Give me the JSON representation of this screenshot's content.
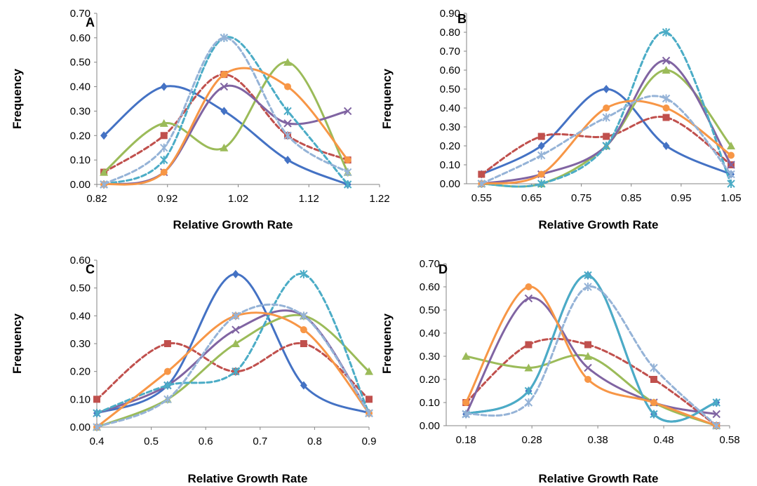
{
  "chart_data": [
    {
      "panel": "A",
      "type": "line",
      "xlabel": "Relative Growth Rate",
      "ylabel": "Frequency",
      "xlim": [
        0.82,
        1.22
      ],
      "ylim": [
        0,
        0.7
      ],
      "xticks": [
        "0.82",
        "0.92",
        "1.02",
        "1.12",
        "1.22"
      ],
      "yticks": [
        "0.00",
        "0.10",
        "0.20",
        "0.30",
        "0.40",
        "0.50",
        "0.60",
        "0.70"
      ],
      "grid": false,
      "series": [
        {
          "color": "#4472c4",
          "marker": "diamond",
          "dash": false,
          "points": [
            [
              0.83,
              0.2
            ],
            [
              0.915,
              0.4
            ],
            [
              1.0,
              0.3
            ],
            [
              1.09,
              0.1
            ],
            [
              1.175,
              0.0
            ]
          ]
        },
        {
          "color": "#c0504d",
          "marker": "square",
          "dash": true,
          "points": [
            [
              0.83,
              0.05
            ],
            [
              0.915,
              0.2
            ],
            [
              1.0,
              0.45
            ],
            [
              1.09,
              0.2
            ],
            [
              1.175,
              0.1
            ]
          ]
        },
        {
          "color": "#9bbb59",
          "marker": "triangle",
          "dash": false,
          "points": [
            [
              0.83,
              0.05
            ],
            [
              0.915,
              0.25
            ],
            [
              1.0,
              0.15
            ],
            [
              1.09,
              0.5
            ],
            [
              1.175,
              0.05
            ]
          ]
        },
        {
          "color": "#8064a2",
          "marker": "x",
          "dash": false,
          "points": [
            [
              0.83,
              0.0
            ],
            [
              0.915,
              0.05
            ],
            [
              1.0,
              0.4
            ],
            [
              1.09,
              0.25
            ],
            [
              1.175,
              0.3
            ]
          ]
        },
        {
          "color": "#4bacc6",
          "marker": "star",
          "dash": true,
          "points": [
            [
              0.83,
              0.0
            ],
            [
              0.915,
              0.1
            ],
            [
              1.0,
              0.6
            ],
            [
              1.09,
              0.3
            ],
            [
              1.175,
              0.0
            ]
          ]
        },
        {
          "color": "#f79646",
          "marker": "circle",
          "dash": false,
          "points": [
            [
              0.83,
              0.0
            ],
            [
              0.915,
              0.05
            ],
            [
              1.0,
              0.45
            ],
            [
              1.09,
              0.4
            ],
            [
              1.175,
              0.1
            ]
          ]
        },
        {
          "color": "#95b3d7",
          "marker": "star",
          "dash": true,
          "points": [
            [
              0.83,
              0.0
            ],
            [
              0.915,
              0.15
            ],
            [
              1.0,
              0.6
            ],
            [
              1.09,
              0.2
            ],
            [
              1.175,
              0.05
            ]
          ]
        }
      ]
    },
    {
      "panel": "B",
      "type": "line",
      "xlabel": "Relative Growth Rate",
      "ylabel": "Frequency",
      "xlim": [
        0.52,
        1.05
      ],
      "ylim": [
        0,
        0.9
      ],
      "xticks": [
        "0.55",
        "0.65",
        "0.75",
        "0.85",
        "0.95",
        "1.05"
      ],
      "yticks": [
        "0.00",
        "0.10",
        "0.20",
        "0.30",
        "0.40",
        "0.50",
        "0.60",
        "0.70",
        "0.80",
        "0.90"
      ],
      "grid": false,
      "series": [
        {
          "color": "#4472c4",
          "marker": "diamond",
          "dash": false,
          "points": [
            [
              0.55,
              0.05
            ],
            [
              0.67,
              0.2
            ],
            [
              0.8,
              0.5
            ],
            [
              0.92,
              0.2
            ],
            [
              1.05,
              0.05
            ]
          ]
        },
        {
          "color": "#c0504d",
          "marker": "square",
          "dash": true,
          "points": [
            [
              0.55,
              0.05
            ],
            [
              0.67,
              0.25
            ],
            [
              0.8,
              0.25
            ],
            [
              0.92,
              0.35
            ],
            [
              1.05,
              0.1
            ]
          ]
        },
        {
          "color": "#9bbb59",
          "marker": "triangle",
          "dash": false,
          "points": [
            [
              0.55,
              0.0
            ],
            [
              0.67,
              0.0
            ],
            [
              0.8,
              0.2
            ],
            [
              0.92,
              0.6
            ],
            [
              1.05,
              0.2
            ]
          ]
        },
        {
          "color": "#8064a2",
          "marker": "x",
          "dash": false,
          "points": [
            [
              0.55,
              0.0
            ],
            [
              0.67,
              0.05
            ],
            [
              0.8,
              0.2
            ],
            [
              0.92,
              0.65
            ],
            [
              1.05,
              0.1
            ]
          ]
        },
        {
          "color": "#4bacc6",
          "marker": "star",
          "dash": true,
          "points": [
            [
              0.55,
              0.0
            ],
            [
              0.67,
              0.0
            ],
            [
              0.8,
              0.2
            ],
            [
              0.92,
              0.8
            ],
            [
              1.05,
              0.0
            ]
          ]
        },
        {
          "color": "#f79646",
          "marker": "circle",
          "dash": false,
          "points": [
            [
              0.55,
              0.0
            ],
            [
              0.67,
              0.05
            ],
            [
              0.8,
              0.4
            ],
            [
              0.92,
              0.4
            ],
            [
              1.05,
              0.15
            ]
          ]
        },
        {
          "color": "#95b3d7",
          "marker": "star",
          "dash": true,
          "points": [
            [
              0.55,
              0.0
            ],
            [
              0.67,
              0.15
            ],
            [
              0.8,
              0.35
            ],
            [
              0.92,
              0.45
            ],
            [
              1.05,
              0.05
            ]
          ]
        }
      ]
    },
    {
      "panel": "C",
      "type": "line",
      "xlabel": "Relative Growth Rate",
      "ylabel": "Frequency",
      "xlim": [
        0.4,
        0.9
      ],
      "ylim": [
        0,
        0.6
      ],
      "xticks": [
        "0.4",
        "0.5",
        "0.6",
        "0.7",
        "0.8",
        "0.9"
      ],
      "yticks": [
        "0.00",
        "0.10",
        "0.20",
        "0.30",
        "0.40",
        "0.50",
        "0.60"
      ],
      "grid": false,
      "series": [
        {
          "color": "#4472c4",
          "marker": "diamond",
          "dash": false,
          "points": [
            [
              0.4,
              0.05
            ],
            [
              0.53,
              0.15
            ],
            [
              0.655,
              0.55
            ],
            [
              0.78,
              0.15
            ],
            [
              0.9,
              0.05
            ]
          ]
        },
        {
          "color": "#c0504d",
          "marker": "square",
          "dash": true,
          "points": [
            [
              0.4,
              0.1
            ],
            [
              0.53,
              0.3
            ],
            [
              0.655,
              0.2
            ],
            [
              0.78,
              0.3
            ],
            [
              0.9,
              0.1
            ]
          ]
        },
        {
          "color": "#9bbb59",
          "marker": "triangle",
          "dash": false,
          "points": [
            [
              0.4,
              0.0
            ],
            [
              0.53,
              0.1
            ],
            [
              0.655,
              0.3
            ],
            [
              0.78,
              0.4
            ],
            [
              0.9,
              0.2
            ]
          ]
        },
        {
          "color": "#8064a2",
          "marker": "x",
          "dash": false,
          "points": [
            [
              0.4,
              0.05
            ],
            [
              0.53,
              0.15
            ],
            [
              0.655,
              0.35
            ],
            [
              0.78,
              0.4
            ],
            [
              0.9,
              0.05
            ]
          ]
        },
        {
          "color": "#4bacc6",
          "marker": "star",
          "dash": true,
          "points": [
            [
              0.4,
              0.05
            ],
            [
              0.53,
              0.15
            ],
            [
              0.655,
              0.2
            ],
            [
              0.78,
              0.55
            ],
            [
              0.9,
              0.05
            ]
          ]
        },
        {
          "color": "#f79646",
          "marker": "circle",
          "dash": false,
          "points": [
            [
              0.4,
              0.0
            ],
            [
              0.53,
              0.2
            ],
            [
              0.655,
              0.4
            ],
            [
              0.78,
              0.35
            ],
            [
              0.9,
              0.05
            ]
          ]
        },
        {
          "color": "#95b3d7",
          "marker": "star",
          "dash": true,
          "points": [
            [
              0.4,
              0.0
            ],
            [
              0.53,
              0.1
            ],
            [
              0.655,
              0.4
            ],
            [
              0.78,
              0.4
            ],
            [
              0.9,
              0.05
            ]
          ]
        }
      ]
    },
    {
      "panel": "D",
      "type": "line",
      "xlabel": "Relative Growth Rate",
      "ylabel": "Frequency",
      "xlim": [
        0.15,
        0.58
      ],
      "ylim": [
        0,
        0.7
      ],
      "xticks": [
        "0.18",
        "0.28",
        "0.38",
        "0.48",
        "0.58"
      ],
      "yticks": [
        "0.00",
        "0.10",
        "0.20",
        "0.30",
        "0.40",
        "0.50",
        "0.60",
        "0.70"
      ],
      "grid": false,
      "series": [
        {
          "color": "#4472c4",
          "marker": "diamond",
          "dash": false,
          "points": [
            [
              0.18,
              0.05
            ],
            [
              0.275,
              0.15
            ],
            [
              0.365,
              0.65
            ],
            [
              0.465,
              0.05
            ],
            [
              0.56,
              0.1
            ]
          ]
        },
        {
          "color": "#c0504d",
          "marker": "square",
          "dash": true,
          "points": [
            [
              0.18,
              0.1
            ],
            [
              0.275,
              0.35
            ],
            [
              0.365,
              0.35
            ],
            [
              0.465,
              0.2
            ],
            [
              0.56,
              0.0
            ]
          ]
        },
        {
          "color": "#9bbb59",
          "marker": "triangle",
          "dash": false,
          "points": [
            [
              0.18,
              0.3
            ],
            [
              0.275,
              0.25
            ],
            [
              0.365,
              0.3
            ],
            [
              0.465,
              0.1
            ],
            [
              0.56,
              0.0
            ]
          ]
        },
        {
          "color": "#8064a2",
          "marker": "x",
          "dash": false,
          "points": [
            [
              0.18,
              0.05
            ],
            [
              0.275,
              0.55
            ],
            [
              0.365,
              0.25
            ],
            [
              0.465,
              0.1
            ],
            [
              0.56,
              0.05
            ]
          ]
        },
        {
          "color": "#4bacc6",
          "marker": "star",
          "dash": false,
          "points": [
            [
              0.18,
              0.05
            ],
            [
              0.275,
              0.15
            ],
            [
              0.365,
              0.65
            ],
            [
              0.465,
              0.05
            ],
            [
              0.56,
              0.1
            ]
          ]
        },
        {
          "color": "#f79646",
          "marker": "circle",
          "dash": false,
          "points": [
            [
              0.18,
              0.1
            ],
            [
              0.275,
              0.6
            ],
            [
              0.365,
              0.2
            ],
            [
              0.465,
              0.1
            ],
            [
              0.56,
              0.0
            ]
          ]
        },
        {
          "color": "#95b3d7",
          "marker": "star",
          "dash": true,
          "points": [
            [
              0.18,
              0.05
            ],
            [
              0.275,
              0.1
            ],
            [
              0.365,
              0.6
            ],
            [
              0.465,
              0.25
            ],
            [
              0.56,
              0.0
            ]
          ]
        }
      ]
    }
  ]
}
